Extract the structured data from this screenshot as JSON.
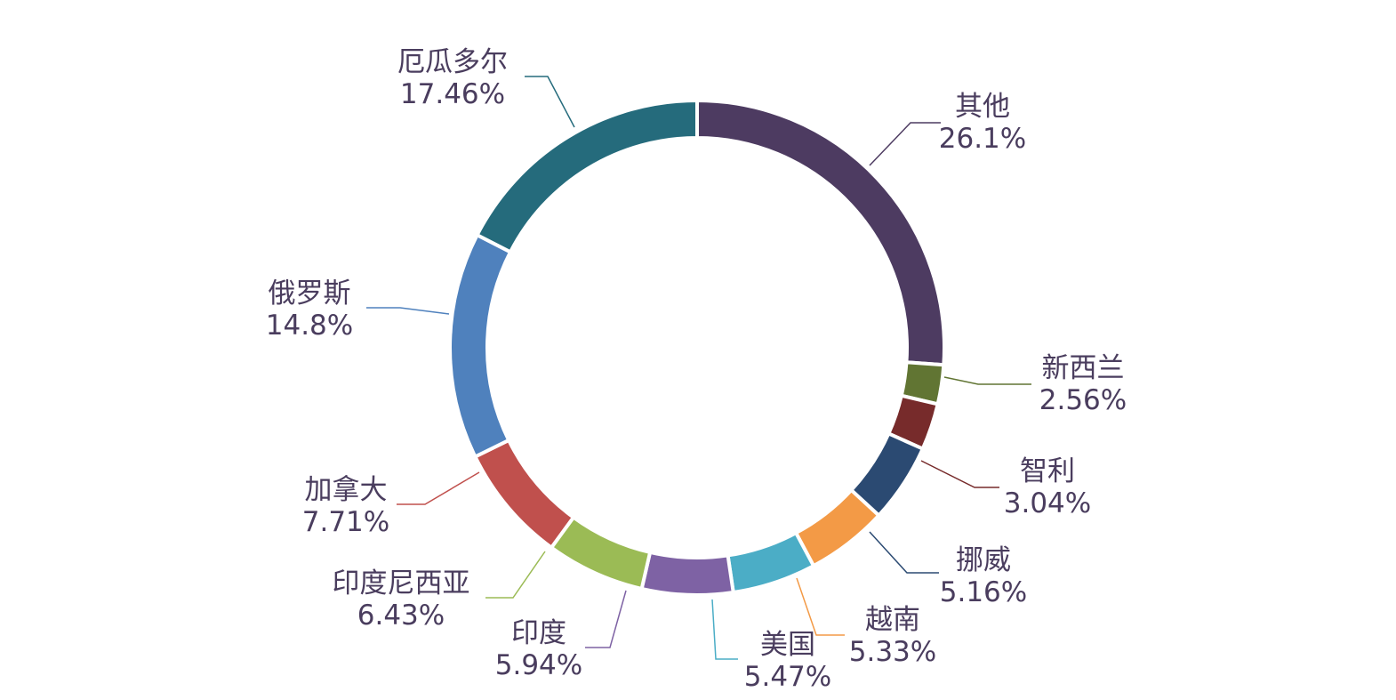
{
  "chart_data": {
    "type": "pie",
    "variant": "donut",
    "title": "",
    "legend": "none",
    "slices": [
      {
        "label": "其他",
        "value": 26.1,
        "percent_text": "26.1%",
        "color": "#4d3b61"
      },
      {
        "label": "新西兰",
        "value": 2.56,
        "percent_text": "2.56%",
        "color": "#617533"
      },
      {
        "label": "智利",
        "value": 3.04,
        "percent_text": "3.04%",
        "color": "#772b2b"
      },
      {
        "label": "挪威",
        "value": 5.16,
        "percent_text": "5.16%",
        "color": "#2b4a72"
      },
      {
        "label": "越南",
        "value": 5.33,
        "percent_text": "5.33%",
        "color": "#f39a46"
      },
      {
        "label": "美国",
        "value": 5.47,
        "percent_text": "5.47%",
        "color": "#4badc6"
      },
      {
        "label": "印度",
        "value": 5.94,
        "percent_text": "5.94%",
        "color": "#7e62a4"
      },
      {
        "label": "印度尼西亚",
        "value": 6.43,
        "percent_text": "6.43%",
        "color": "#9bbb55"
      },
      {
        "label": "加拿大",
        "value": 7.71,
        "percent_text": "7.71%",
        "color": "#c0504d"
      },
      {
        "label": "俄罗斯",
        "value": 14.8,
        "percent_text": "14.8%",
        "color": "#4f81bd"
      },
      {
        "label": "厄瓜多尔",
        "value": 17.46,
        "percent_text": "17.46%",
        "color": "#256b7c"
      }
    ]
  }
}
